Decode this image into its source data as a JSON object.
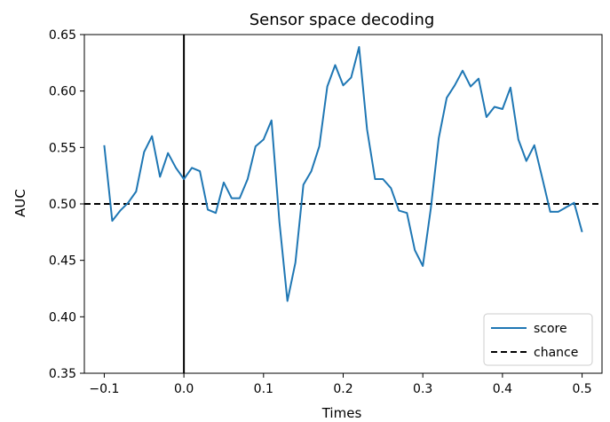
{
  "chart_data": {
    "type": "line",
    "title": "Sensor space decoding",
    "xlabel": "Times",
    "ylabel": "AUC",
    "xlim": [
      -0.125,
      0.525
    ],
    "ylim": [
      0.35,
      0.65
    ],
    "xticks": [
      -0.1,
      0.0,
      0.1,
      0.2,
      0.3,
      0.4,
      0.5
    ],
    "xtick_labels": [
      "−0.1",
      "0.0",
      "0.1",
      "0.2",
      "0.3",
      "0.4",
      "0.5"
    ],
    "yticks": [
      0.35,
      0.4,
      0.45,
      0.5,
      0.55,
      0.6,
      0.65
    ],
    "ytick_labels": [
      "0.35",
      "0.40",
      "0.45",
      "0.50",
      "0.55",
      "0.60",
      "0.65"
    ],
    "legend_position": "lower-right",
    "grid": false,
    "series": [
      {
        "name": "score",
        "color": "#1f77b4",
        "style": "solid",
        "x": [
          -0.1,
          -0.09,
          -0.08,
          -0.07,
          -0.06,
          -0.05,
          -0.04,
          -0.03,
          -0.02,
          -0.01,
          0.0,
          0.01,
          0.02,
          0.03,
          0.04,
          0.05,
          0.06,
          0.07,
          0.08,
          0.09,
          0.1,
          0.11,
          0.12,
          0.13,
          0.14,
          0.15,
          0.16,
          0.17,
          0.18,
          0.19,
          0.2,
          0.21,
          0.22,
          0.23,
          0.24,
          0.25,
          0.26,
          0.27,
          0.28,
          0.29,
          0.3,
          0.31,
          0.32,
          0.33,
          0.34,
          0.35,
          0.36,
          0.37,
          0.38,
          0.39,
          0.4,
          0.41,
          0.42,
          0.43,
          0.44,
          0.45,
          0.46,
          0.47,
          0.48,
          0.49,
          0.5
        ],
        "y": [
          0.552,
          0.485,
          0.494,
          0.501,
          0.511,
          0.546,
          0.56,
          0.524,
          0.545,
          0.532,
          0.522,
          0.532,
          0.529,
          0.495,
          0.492,
          0.519,
          0.505,
          0.505,
          0.522,
          0.551,
          0.557,
          0.574,
          0.484,
          0.414,
          0.448,
          0.517,
          0.529,
          0.551,
          0.604,
          0.623,
          0.605,
          0.612,
          0.639,
          0.566,
          0.522,
          0.522,
          0.514,
          0.494,
          0.492,
          0.459,
          0.445,
          0.496,
          0.558,
          0.594,
          0.605,
          0.618,
          0.604,
          0.611,
          0.577,
          0.586,
          0.584,
          0.603,
          0.557,
          0.538,
          0.552,
          0.523,
          0.493,
          0.493,
          0.497,
          0.501,
          0.475
        ]
      },
      {
        "name": "chance",
        "color": "#000000",
        "style": "dashed",
        "value": 0.5
      }
    ],
    "vline": {
      "x": 0.0,
      "color": "#000000"
    }
  }
}
